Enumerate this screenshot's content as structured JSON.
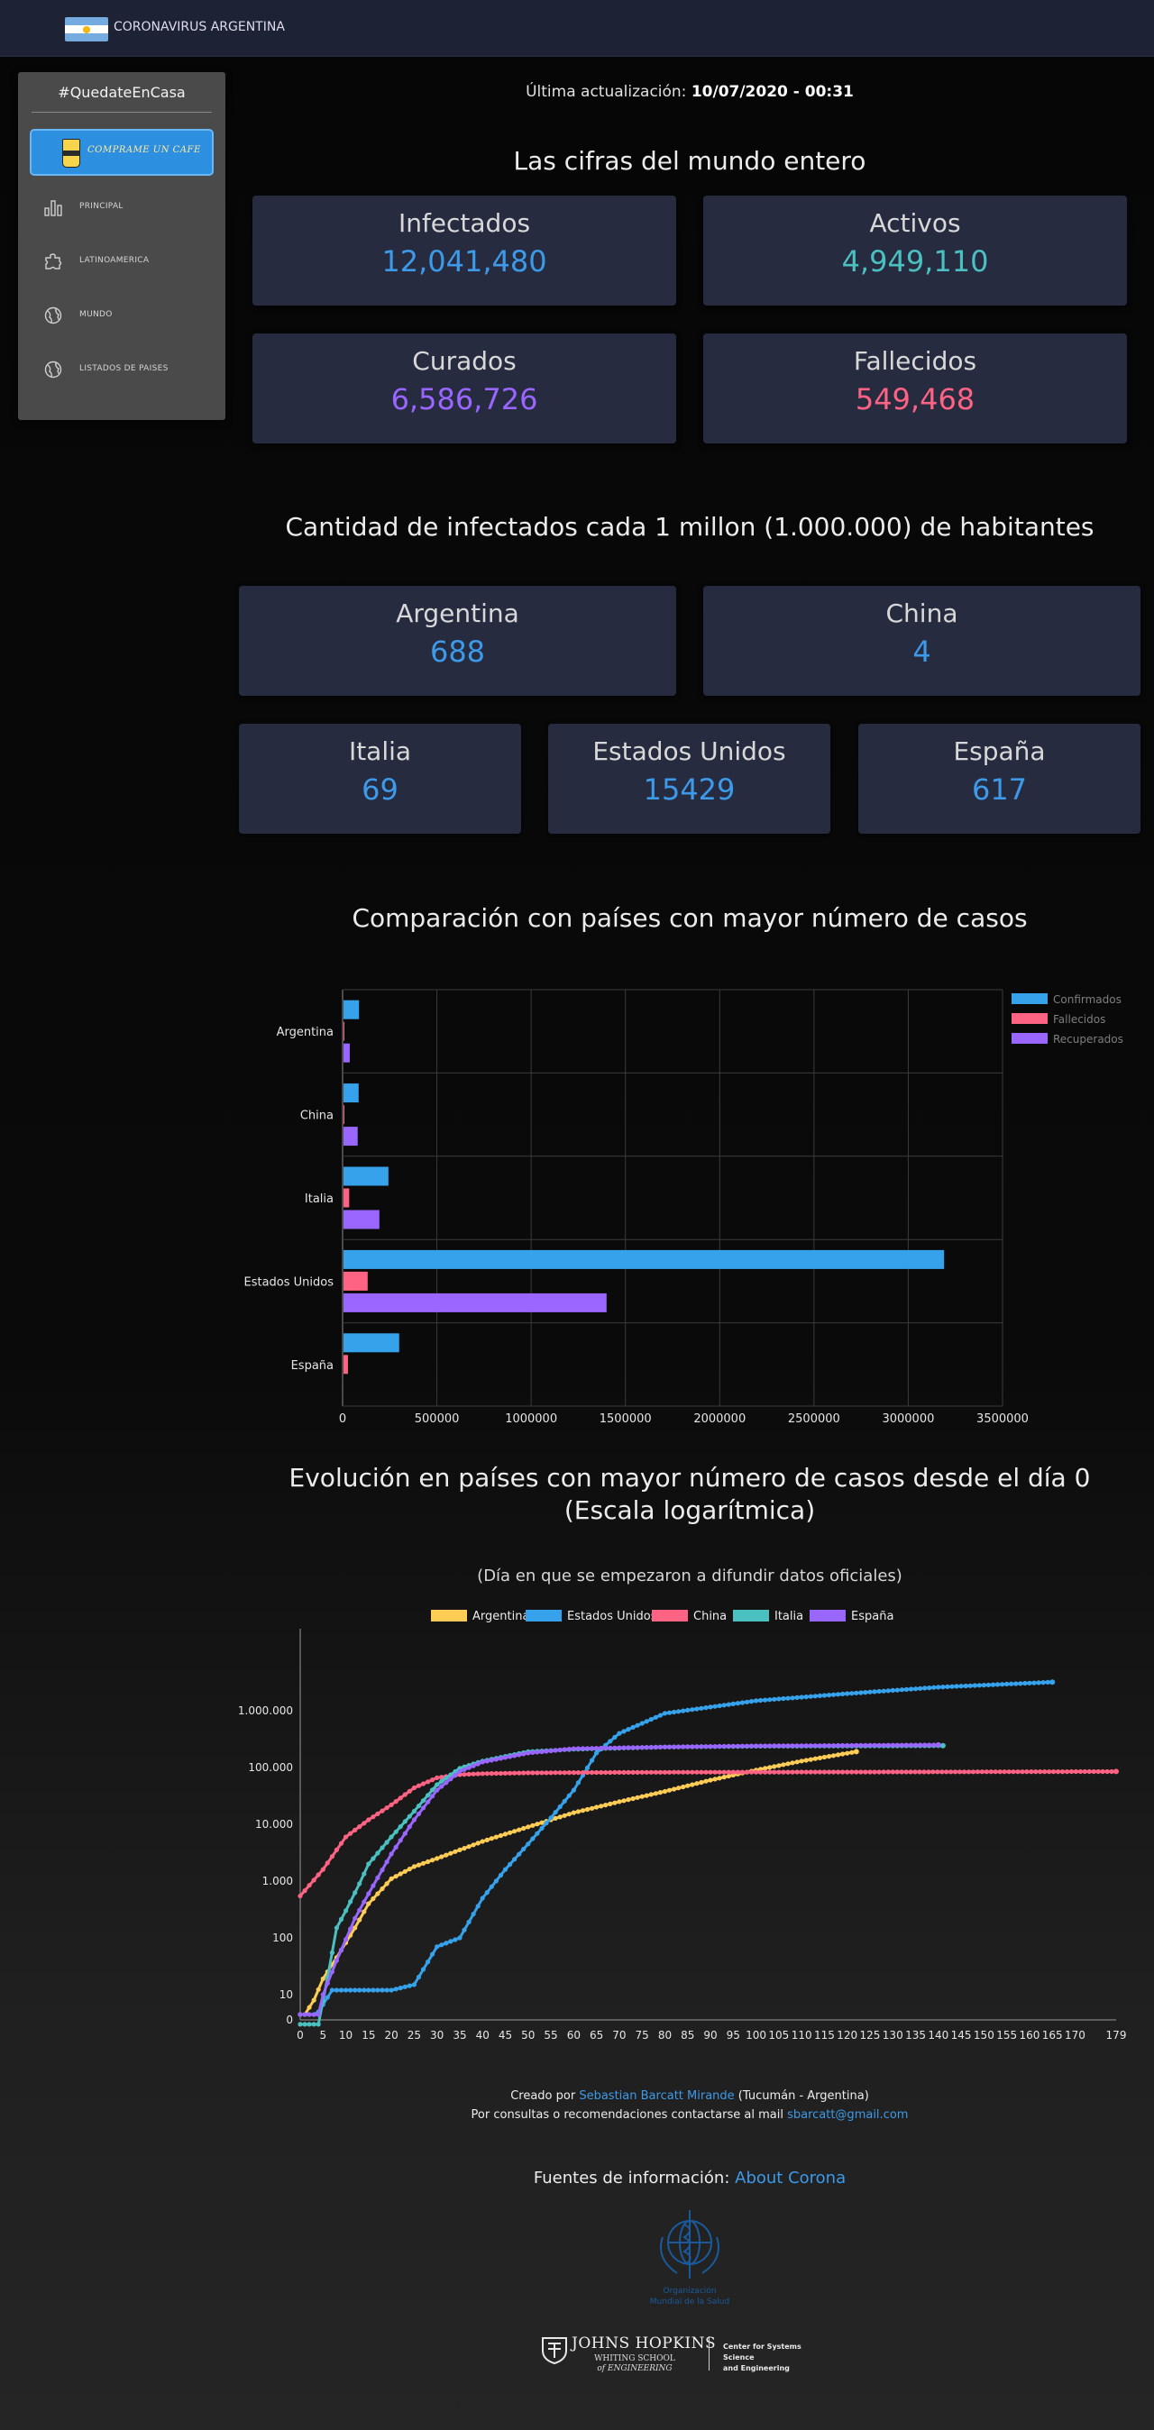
{
  "app": {
    "title": "CORONAVIRUS ARGENTINA"
  },
  "sidebar": {
    "title": "#QuedateEnCasa",
    "coffee_button": "COMPRAME UN CAFE",
    "items": [
      {
        "label": "PRINCIPAL",
        "icon": "bar-chart-icon"
      },
      {
        "label": "LATINOAMERICA",
        "icon": "puzzle-map-icon"
      },
      {
        "label": "MUNDO",
        "icon": "globe-icon"
      },
      {
        "label": "LISTADOS DE PAISES",
        "icon": "globe-icon"
      }
    ]
  },
  "update": {
    "label": "Última actualización:",
    "value": "10/07/2020 - 00:31"
  },
  "world": {
    "title": "Las cifras del mundo entero",
    "cards": [
      {
        "label": "Infectados",
        "value": "12,041,480",
        "color": "#3d9ae8"
      },
      {
        "label": "Activos",
        "value": "4,949,110",
        "color": "#4bc0c0"
      },
      {
        "label": "Curados",
        "value": "6,586,726",
        "color": "#9966ff"
      },
      {
        "label": "Fallecidos",
        "value": "549,468",
        "color": "#ff6384"
      }
    ]
  },
  "per_million": {
    "title": "Cantidad de infectados cada 1 millon (1.000.000) de habitantes",
    "cards": [
      {
        "label": "Argentina",
        "value": "688"
      },
      {
        "label": "China",
        "value": "4"
      },
      {
        "label": "Italia",
        "value": "69"
      },
      {
        "label": "Estados Unidos",
        "value": "15429"
      },
      {
        "label": "España",
        "value": "617"
      }
    ],
    "value_color": "#3d9ae8"
  },
  "comparison": {
    "title": "Comparación con países con mayor número de casos"
  },
  "evolution": {
    "title_line1": "Evolución en países con mayor número de casos desde el día 0",
    "title_line2": "(Escala logarítmica)",
    "subtitle": "(Día en que se empezaron a difundir datos oficiales)"
  },
  "footer": {
    "created_by": "Creado por",
    "author": "Sebastian Barcatt Mirande",
    "location": "(Tucumán - Argentina)",
    "contact_text": "Por consultas o recomendaciones contactarse al mail",
    "email": "sbarcatt@gmail.com",
    "sources_label": "Fuentes de información:",
    "sources_link": "About Corona",
    "who_line1": "Organización",
    "who_line2": "Mundial de la Salud",
    "jhu_name": "JOHNS HOPKINS",
    "jhu_sub1": "WHITING SCHOOL",
    "jhu_sub2": "of ENGINEERING",
    "jhu_center1": "Center for Systems Science",
    "jhu_center2": "and Engineering"
  },
  "chart_data": [
    {
      "type": "bar",
      "orientation": "horizontal",
      "categories": [
        "Argentina",
        "China",
        "Italia",
        "Estados Unidos",
        "España"
      ],
      "series": [
        {
          "name": "Confirmados",
          "color": "#36a2eb",
          "values": [
            87000,
            85000,
            243000,
            3190000,
            300000
          ]
        },
        {
          "name": "Fallecidos",
          "color": "#ff6384",
          "values": [
            1700,
            4600,
            35000,
            133000,
            28400
          ]
        },
        {
          "name": "Recuperados",
          "color": "#9966ff",
          "values": [
            38000,
            80000,
            195000,
            1400000,
            0
          ]
        }
      ],
      "x_ticks": [
        "0",
        "500000",
        "1000000",
        "1500000",
        "2000000",
        "2500000",
        "3000000",
        "3500000"
      ],
      "xlim": [
        0,
        3500000
      ],
      "grid": true,
      "legend": "top-right"
    },
    {
      "type": "line",
      "yscale": "log",
      "series": [
        {
          "name": "Argentina",
          "color": "#ffcd56",
          "points": [
            [
              0,
              1
            ],
            [
              1,
              1
            ],
            [
              3,
              8
            ],
            [
              5,
              19
            ],
            [
              8,
              45
            ],
            [
              12,
              150
            ],
            [
              15,
              400
            ],
            [
              20,
              1100
            ],
            [
              25,
              1800
            ],
            [
              30,
              2500
            ],
            [
              40,
              5000
            ],
            [
              50,
              9000
            ],
            [
              60,
              16000
            ],
            [
              70,
              25000
            ],
            [
              80,
              38000
            ],
            [
              90,
              60000
            ],
            [
              100,
              90000
            ],
            [
              110,
              130000
            ],
            [
              122,
              190000
            ]
          ]
        },
        {
          "name": "Estados Unidos",
          "color": "#36a2eb",
          "points": [
            [
              0,
              1
            ],
            [
              3,
              1
            ],
            [
              4,
              5
            ],
            [
              7,
              12
            ],
            [
              20,
              12
            ],
            [
              25,
              15
            ],
            [
              30,
              70
            ],
            [
              35,
              100
            ],
            [
              40,
              500
            ],
            [
              45,
              1600
            ],
            [
              50,
              4500
            ],
            [
              55,
              13000
            ],
            [
              60,
              40000
            ],
            [
              65,
              180000
            ],
            [
              70,
              400000
            ],
            [
              80,
              900000
            ],
            [
              100,
              1500000
            ],
            [
              120,
              2000000
            ],
            [
              140,
              2600000
            ],
            [
              165,
              3200000
            ]
          ]
        },
        {
          "name": "China",
          "color": "#ff6384",
          "points": [
            [
              0,
              548
            ],
            [
              5,
              1600
            ],
            [
              10,
              6000
            ],
            [
              15,
              12000
            ],
            [
              20,
              22000
            ],
            [
              25,
              44000
            ],
            [
              30,
              66000
            ],
            [
              35,
              75000
            ],
            [
              40,
              78000
            ],
            [
              50,
              80500
            ],
            [
              60,
              81500
            ],
            [
              80,
              82500
            ],
            [
              100,
              83000
            ],
            [
              130,
              83500
            ],
            [
              179,
              85000
            ]
          ]
        },
        {
          "name": "Italia",
          "color": "#4bc0c0",
          "points": [
            [
              0,
              3
            ],
            [
              2,
              3
            ],
            [
              4,
              3
            ],
            [
              6,
              20
            ],
            [
              8,
              150
            ],
            [
              10,
              300
            ],
            [
              13,
              900
            ],
            [
              15,
              2000
            ],
            [
              20,
              6000
            ],
            [
              25,
              17000
            ],
            [
              30,
              50000
            ],
            [
              35,
              97000
            ],
            [
              40,
              130000
            ],
            [
              50,
              190000
            ],
            [
              60,
              210000
            ],
            [
              80,
              230000
            ],
            [
              100,
              237000
            ],
            [
              141,
              242000
            ]
          ]
        },
        {
          "name": "España",
          "color": "#9966ff",
          "points": [
            [
              0,
              1
            ],
            [
              4,
              1
            ],
            [
              5,
              10
            ],
            [
              8,
              40
            ],
            [
              12,
              220
            ],
            [
              15,
              600
            ],
            [
              20,
              3000
            ],
            [
              25,
              12000
            ],
            [
              30,
              40000
            ],
            [
              35,
              85000
            ],
            [
              40,
              125000
            ],
            [
              50,
              180000
            ],
            [
              60,
              215000
            ],
            [
              80,
              230000
            ],
            [
              100,
              240000
            ],
            [
              140,
              250000
            ]
          ]
        }
      ],
      "x_ticks": [
        "0",
        "5",
        "10",
        "15",
        "20",
        "25",
        "30",
        "35",
        "40",
        "45",
        "50",
        "55",
        "60",
        "65",
        "70",
        "75",
        "80",
        "85",
        "90",
        "95",
        "100",
        "105",
        "110",
        "115",
        "120",
        "125",
        "130",
        "135",
        "140",
        "145",
        "150",
        "155",
        "160",
        "165",
        "170",
        "179"
      ],
      "y_ticks": [
        "0",
        "10",
        "100",
        "1.000",
        "10.000",
        "100.000",
        "1.000.000"
      ],
      "legend": "top"
    }
  ]
}
